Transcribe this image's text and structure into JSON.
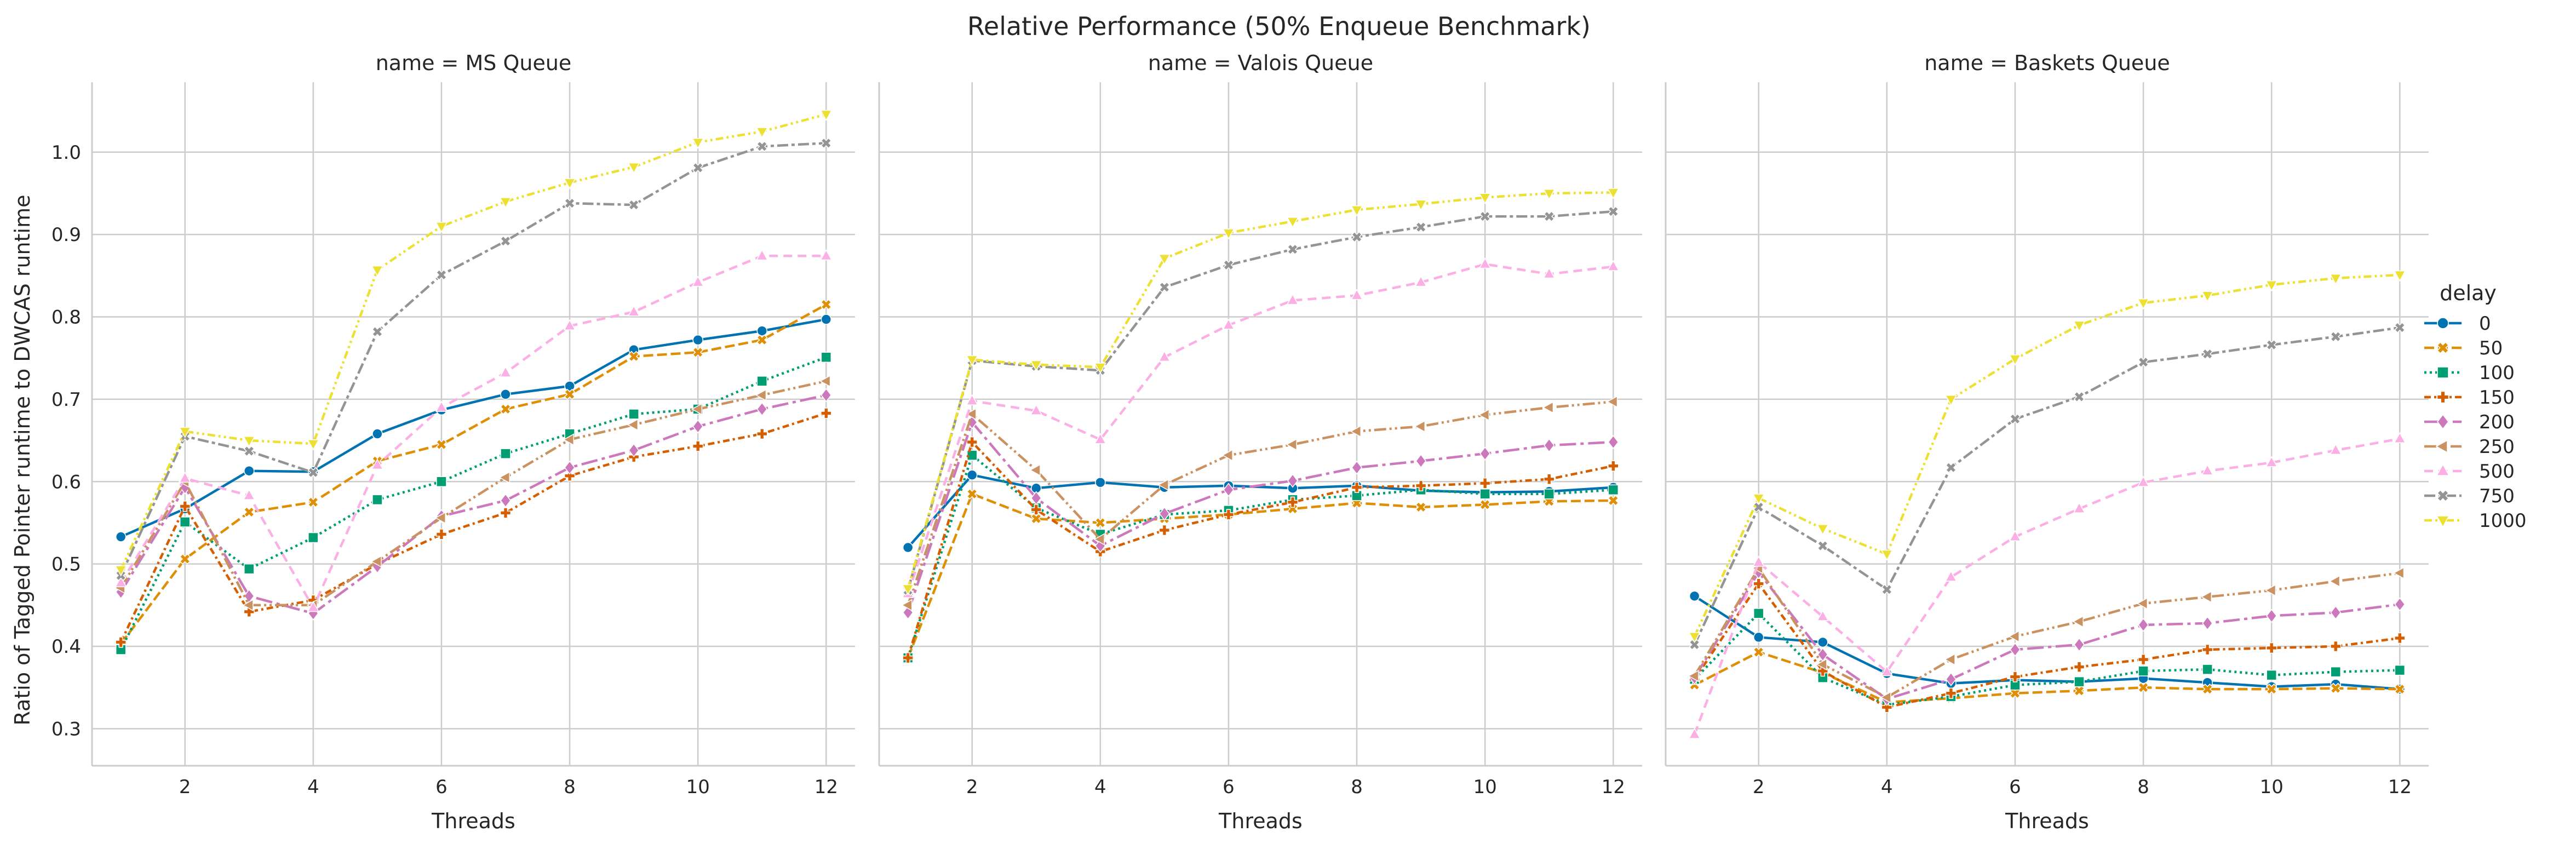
{
  "chart_data": {
    "type": "line",
    "title": "Relative Performance (50% Enqueue Benchmark)",
    "ylabel": "Ratio of Tagged Pointer runtime to DWCAS runtime",
    "xlabel": "Threads",
    "x": [
      1,
      2,
      3,
      4,
      5,
      6,
      7,
      8,
      9,
      10,
      11,
      12
    ],
    "xticks": [
      2,
      4,
      6,
      8,
      10,
      12
    ],
    "yticks": [
      0.3,
      0.4,
      0.5,
      0.6,
      0.7,
      0.8,
      0.9,
      1.0
    ],
    "xlim": [
      0.55,
      12.45
    ],
    "ylim": [
      0.255,
      1.085
    ],
    "grid": true,
    "legend": {
      "title": "delay",
      "placement": "right",
      "entries": [
        "0",
        "50",
        "100",
        "150",
        "200",
        "250",
        "500",
        "750",
        "1000"
      ],
      "colors": [
        "#0173b2",
        "#de8f05",
        "#029e73",
        "#d55e00",
        "#cc78bc",
        "#ca9161",
        "#fbafe4",
        "#949494",
        "#ece133"
      ]
    },
    "panels": [
      {
        "title": "name = MS Queue",
        "series": [
          {
            "name": "0",
            "values": [
              0.533,
              0.567,
              0.613,
              0.612,
              0.658,
              0.687,
              0.706,
              0.716,
              0.76,
              0.772,
              0.783,
              0.797
            ]
          },
          {
            "name": "50",
            "values": [
              0.403,
              0.506,
              0.563,
              0.575,
              0.625,
              0.645,
              0.688,
              0.706,
              0.752,
              0.757,
              0.772,
              0.815
            ]
          },
          {
            "name": "100",
            "values": [
              0.396,
              0.551,
              0.494,
              0.532,
              0.578,
              0.6,
              0.634,
              0.658,
              0.682,
              0.688,
              0.722,
              0.751
            ]
          },
          {
            "name": "150",
            "values": [
              0.405,
              0.57,
              0.442,
              0.456,
              0.5,
              0.536,
              0.562,
              0.607,
              0.63,
              0.643,
              0.658,
              0.683
            ]
          },
          {
            "name": "200",
            "values": [
              0.466,
              0.593,
              0.461,
              0.44,
              0.497,
              0.558,
              0.577,
              0.617,
              0.638,
              0.667,
              0.688,
              0.705
            ]
          },
          {
            "name": "250",
            "values": [
              0.471,
              0.6,
              0.45,
              0.45,
              0.503,
              0.556,
              0.605,
              0.651,
              0.669,
              0.688,
              0.705,
              0.722
            ]
          },
          {
            "name": "500",
            "values": [
              0.477,
              0.604,
              0.583,
              0.447,
              0.62,
              0.69,
              0.732,
              0.789,
              0.806,
              0.842,
              0.874,
              0.874
            ]
          },
          {
            "name": "750",
            "values": [
              0.486,
              0.655,
              0.637,
              0.611,
              0.782,
              0.851,
              0.892,
              0.938,
              0.936,
              0.981,
              1.007,
              1.011
            ]
          },
          {
            "name": "1000",
            "values": [
              0.493,
              0.661,
              0.65,
              0.646,
              0.857,
              0.91,
              0.94,
              0.963,
              0.982,
              1.012,
              1.025,
              1.046
            ]
          }
        ]
      },
      {
        "title": "name = Valois Queue",
        "series": [
          {
            "name": "0",
            "values": [
              0.52,
              0.608,
              0.592,
              0.599,
              0.593,
              0.595,
              0.592,
              0.595,
              0.589,
              0.587,
              0.588,
              0.593
            ]
          },
          {
            "name": "50",
            "values": [
              0.386,
              0.585,
              0.555,
              0.55,
              0.555,
              0.56,
              0.567,
              0.574,
              0.569,
              0.572,
              0.576,
              0.577
            ]
          },
          {
            "name": "100",
            "values": [
              0.386,
              0.632,
              0.568,
              0.536,
              0.56,
              0.565,
              0.578,
              0.583,
              0.59,
              0.585,
              0.585,
              0.59
            ]
          },
          {
            "name": "150",
            "values": [
              0.386,
              0.648,
              0.566,
              0.515,
              0.541,
              0.56,
              0.575,
              0.593,
              0.595,
              0.598,
              0.603,
              0.619
            ]
          },
          {
            "name": "200",
            "values": [
              0.441,
              0.672,
              0.58,
              0.522,
              0.561,
              0.59,
              0.601,
              0.617,
              0.625,
              0.634,
              0.644,
              0.648
            ]
          },
          {
            "name": "250",
            "values": [
              0.45,
              0.682,
              0.614,
              0.53,
              0.596,
              0.632,
              0.645,
              0.661,
              0.667,
              0.681,
              0.69,
              0.697
            ]
          },
          {
            "name": "500",
            "values": [
              0.464,
              0.698,
              0.686,
              0.651,
              0.751,
              0.79,
              0.82,
              0.826,
              0.842,
              0.864,
              0.852,
              0.861
            ]
          },
          {
            "name": "750",
            "values": [
              0.468,
              0.747,
              0.74,
              0.735,
              0.836,
              0.863,
              0.882,
              0.897,
              0.909,
              0.922,
              0.922,
              0.928
            ]
          },
          {
            "name": "1000",
            "values": [
              0.47,
              0.748,
              0.742,
              0.739,
              0.871,
              0.902,
              0.916,
              0.93,
              0.937,
              0.945,
              0.95,
              0.951
            ]
          }
        ]
      },
      {
        "title": "name = Baskets Queue",
        "series": [
          {
            "name": "0",
            "values": [
              0.461,
              0.411,
              0.405,
              0.367,
              0.355,
              0.359,
              0.357,
              0.361,
              0.356,
              0.351,
              0.354,
              0.348
            ]
          },
          {
            "name": "50",
            "values": [
              0.353,
              0.393,
              0.368,
              0.332,
              0.337,
              0.343,
              0.346,
              0.35,
              0.348,
              0.348,
              0.349,
              0.348
            ]
          },
          {
            "name": "100",
            "values": [
              0.36,
              0.44,
              0.362,
              0.329,
              0.339,
              0.353,
              0.357,
              0.37,
              0.372,
              0.365,
              0.369,
              0.371
            ]
          },
          {
            "name": "150",
            "values": [
              0.36,
              0.476,
              0.37,
              0.326,
              0.343,
              0.363,
              0.375,
              0.384,
              0.396,
              0.398,
              0.4,
              0.41
            ]
          },
          {
            "name": "200",
            "values": [
              0.362,
              0.49,
              0.39,
              0.336,
              0.36,
              0.396,
              0.402,
              0.426,
              0.428,
              0.437,
              0.441,
              0.451
            ]
          },
          {
            "name": "250",
            "values": [
              0.364,
              0.495,
              0.378,
              0.338,
              0.384,
              0.412,
              0.43,
              0.452,
              0.46,
              0.468,
              0.479,
              0.489
            ]
          },
          {
            "name": "500",
            "values": [
              0.293,
              0.502,
              0.436,
              0.369,
              0.484,
              0.533,
              0.567,
              0.599,
              0.613,
              0.623,
              0.638,
              0.652
            ]
          },
          {
            "name": "750",
            "values": [
              0.402,
              0.569,
              0.522,
              0.469,
              0.617,
              0.676,
              0.703,
              0.745,
              0.755,
              0.766,
              0.776,
              0.787
            ]
          },
          {
            "name": "1000",
            "values": [
              0.412,
              0.58,
              0.543,
              0.512,
              0.7,
              0.749,
              0.79,
              0.817,
              0.826,
              0.839,
              0.847,
              0.851
            ]
          }
        ]
      }
    ]
  }
}
